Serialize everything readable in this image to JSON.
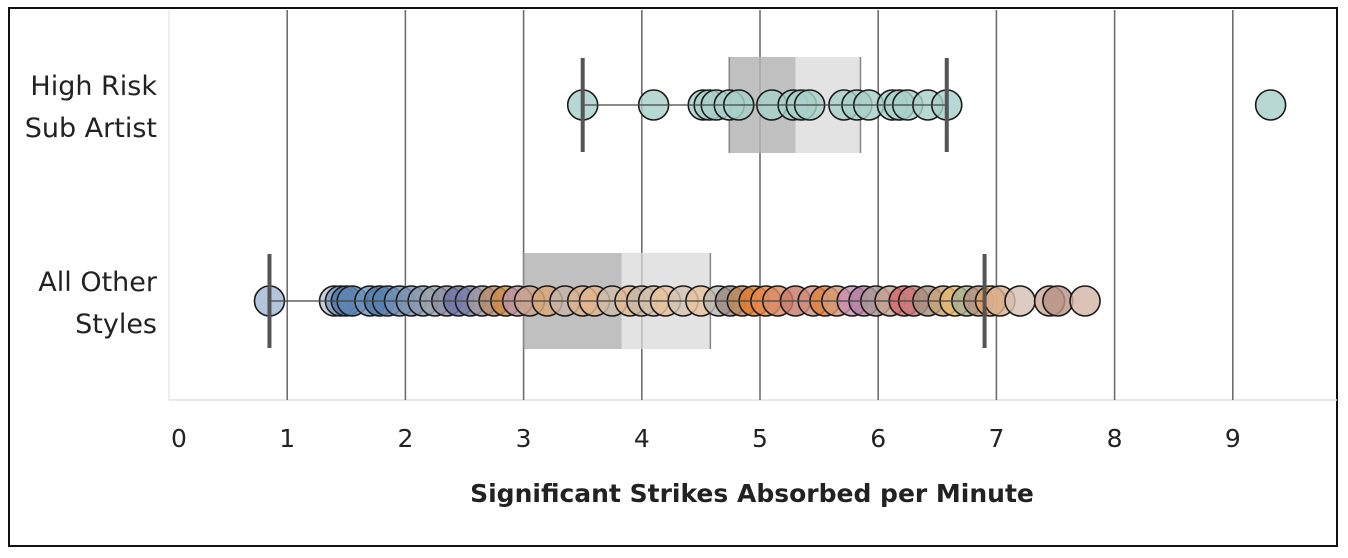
{
  "chart_data": {
    "type": "scatter",
    "subtype": "box-and-whisker with jittered points",
    "orientation": "horizontal",
    "xlabel": "Significant Strikes Absorbed per Minute",
    "xlim": [
      0,
      9.9
    ],
    "xticks": [
      "0",
      "1",
      "2",
      "3",
      "4",
      "5",
      "6",
      "7",
      "8",
      "9"
    ],
    "grid": "vertical",
    "categories": [
      {
        "label_lines": [
          "High Risk",
          "Sub Artist"
        ],
        "whisker_low": 3.5,
        "q1": 4.74,
        "median": 5.3,
        "q3": 5.85,
        "whisker_high": 6.58,
        "points": [
          3.5,
          4.1,
          4.52,
          4.57,
          4.63,
          4.74,
          4.82,
          5.1,
          5.28,
          5.35,
          5.42,
          5.71,
          5.82,
          5.92,
          6.12,
          6.18,
          6.25,
          6.42,
          6.58,
          9.32
        ],
        "color": "#a8cfc9"
      },
      {
        "label_lines": [
          "All Other",
          "Styles"
        ],
        "whisker_low": 0.85,
        "q1": 3.0,
        "median": 3.83,
        "q3": 4.58,
        "whisker_high": 6.9,
        "points": [
          {
            "x": 0.85,
            "c": "#a2b8d6"
          },
          {
            "x": 1.4,
            "c": "#b9c4d4"
          },
          {
            "x": 1.45,
            "c": "#7b9ac0"
          },
          {
            "x": 1.5,
            "c": "#4e79a7"
          },
          {
            "x": 1.55,
            "c": "#5e86b3"
          },
          {
            "x": 1.7,
            "c": "#6d93bd"
          },
          {
            "x": 1.78,
            "c": "#4e79a7"
          },
          {
            "x": 1.85,
            "c": "#5a82ae"
          },
          {
            "x": 1.95,
            "c": "#6f8fb4"
          },
          {
            "x": 2.05,
            "c": "#7a94b3"
          },
          {
            "x": 2.15,
            "c": "#8a9ab0"
          },
          {
            "x": 2.25,
            "c": "#9aa3ad"
          },
          {
            "x": 2.35,
            "c": "#8d8fa3"
          },
          {
            "x": 2.45,
            "c": "#6e75a2"
          },
          {
            "x": 2.55,
            "c": "#7a7fa7"
          },
          {
            "x": 2.65,
            "c": "#a09aa3"
          },
          {
            "x": 2.75,
            "c": "#b78e6a"
          },
          {
            "x": 2.85,
            "c": "#d08a4a"
          },
          {
            "x": 2.95,
            "c": "#bb94a6"
          },
          {
            "x": 3.05,
            "c": "#c9a58c"
          },
          {
            "x": 3.2,
            "c": "#d9a77a"
          },
          {
            "x": 3.35,
            "c": "#c4b3a6"
          },
          {
            "x": 3.5,
            "c": "#ddb38f"
          },
          {
            "x": 3.6,
            "c": "#e3b58c"
          },
          {
            "x": 3.75,
            "c": "#cdbca9"
          },
          {
            "x": 3.9,
            "c": "#e0b994"
          },
          {
            "x": 4.0,
            "c": "#c8b7a4"
          },
          {
            "x": 4.1,
            "c": "#d4bfaa"
          },
          {
            "x": 4.2,
            "c": "#e6c29a"
          },
          {
            "x": 4.35,
            "c": "#d3c5b6"
          },
          {
            "x": 4.5,
            "c": "#e7c39e"
          },
          {
            "x": 4.65,
            "c": "#b9b9b0"
          },
          {
            "x": 4.75,
            "c": "#9a8a84"
          },
          {
            "x": 4.85,
            "c": "#c08a5a"
          },
          {
            "x": 4.95,
            "c": "#e07b2f"
          },
          {
            "x": 5.05,
            "c": "#e8894a"
          },
          {
            "x": 5.15,
            "c": "#d98c66"
          },
          {
            "x": 5.3,
            "c": "#c77b6a"
          },
          {
            "x": 5.45,
            "c": "#cf8f7c"
          },
          {
            "x": 5.55,
            "c": "#e07f3e"
          },
          {
            "x": 5.65,
            "c": "#d69a78"
          },
          {
            "x": 5.78,
            "c": "#c88fb0"
          },
          {
            "x": 5.88,
            "c": "#b57fa3"
          },
          {
            "x": 5.98,
            "c": "#a99898"
          },
          {
            "x": 6.1,
            "c": "#c8a18f"
          },
          {
            "x": 6.22,
            "c": "#d46a6a"
          },
          {
            "x": 6.3,
            "c": "#c97a7a"
          },
          {
            "x": 6.42,
            "c": "#a89080"
          },
          {
            "x": 6.55,
            "c": "#c9a27a"
          },
          {
            "x": 6.65,
            "c": "#e3b870"
          },
          {
            "x": 6.75,
            "c": "#a8b090"
          },
          {
            "x": 6.85,
            "c": "#b89080"
          },
          {
            "x": 6.95,
            "c": "#e2a565"
          },
          {
            "x": 7.03,
            "c": "#d9b090"
          },
          {
            "x": 7.2,
            "c": "#d7bfb5"
          },
          {
            "x": 7.45,
            "c": "#c9a89a"
          },
          {
            "x": 7.52,
            "c": "#b89585"
          },
          {
            "x": 7.75,
            "c": "#d4b6a8"
          }
        ]
      }
    ]
  }
}
